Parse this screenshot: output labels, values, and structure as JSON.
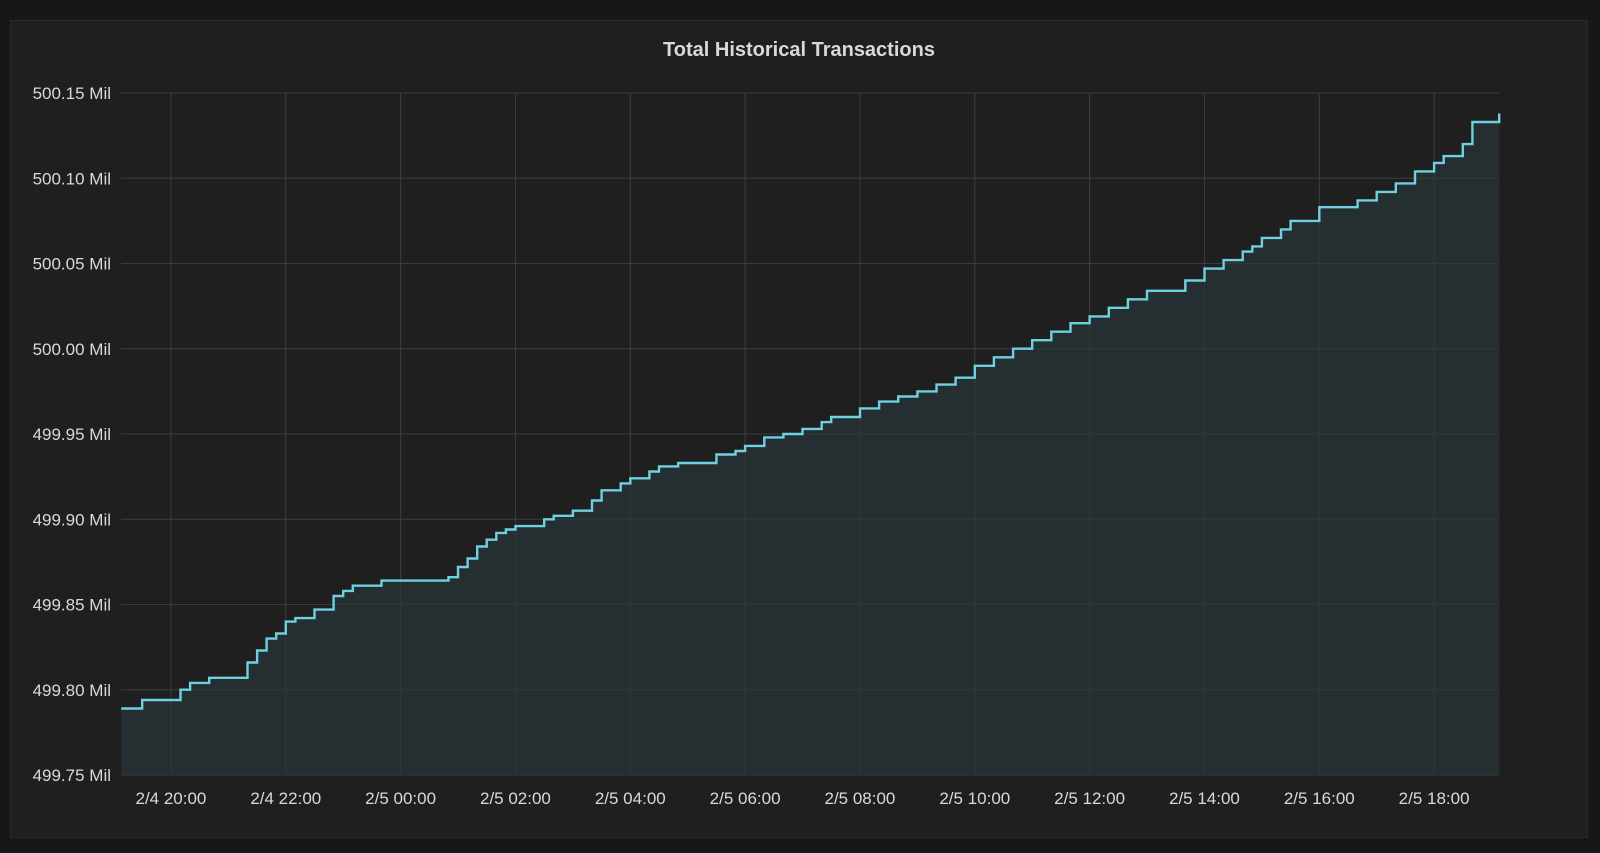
{
  "chart_data": {
    "type": "line",
    "title": "Total Historical Transactions",
    "xlabel": "",
    "ylabel": "",
    "x_ticks": [
      "2/4 20:00",
      "2/4 22:00",
      "2/5 00:00",
      "2/5 02:00",
      "2/5 04:00",
      "2/5 06:00",
      "2/5 08:00",
      "2/5 10:00",
      "2/5 12:00",
      "2/5 14:00",
      "2/5 16:00",
      "2/5 18:00"
    ],
    "y_ticks": [
      "499.75 Mil",
      "499.80 Mil",
      "499.85 Mil",
      "499.90 Mil",
      "499.95 Mil",
      "500.00 Mil",
      "500.05 Mil",
      "500.10 Mil",
      "500.15 Mil"
    ],
    "ylim": [
      499.75,
      500.15
    ],
    "xlim_hours_from_2_4_20_00": [
      -0.87,
      23.13
    ],
    "grid": true,
    "fill_area": true,
    "colors": {
      "line": "#6ed0e0",
      "fill": "#263033",
      "grid": "#3b3c3e",
      "text": "#d8d9da",
      "panel_bg": "#1f1f20",
      "page_bg": "#161719"
    },
    "series": [
      {
        "color": "#6ed0e0",
        "x": [
          "2/4 19:08",
          "2/4 19:20",
          "2/4 19:30",
          "2/4 20:00",
          "2/4 20:10",
          "2/4 20:20",
          "2/4 20:40",
          "2/4 21:00",
          "2/4 21:20",
          "2/4 21:30",
          "2/4 21:40",
          "2/4 21:50",
          "2/4 22:00",
          "2/4 22:10",
          "2/4 22:30",
          "2/4 22:50",
          "2/4 23:00",
          "2/4 23:10",
          "2/4 23:20",
          "2/4 23:40",
          "2/5 00:00",
          "2/5 00:30",
          "2/5 00:50",
          "2/5 01:00",
          "2/5 01:10",
          "2/5 01:20",
          "2/5 01:30",
          "2/5 01:40",
          "2/5 01:50",
          "2/5 02:00",
          "2/5 02:10",
          "2/5 02:30",
          "2/5 02:40",
          "2/5 03:00",
          "2/5 03:20",
          "2/5 03:30",
          "2/5 03:50",
          "2/5 04:00",
          "2/5 04:20",
          "2/5 04:30",
          "2/5 04:50",
          "2/5 05:00",
          "2/5 05:30",
          "2/5 05:50",
          "2/5 06:00",
          "2/5 06:20",
          "2/5 06:40",
          "2/5 07:00",
          "2/5 07:20",
          "2/5 07:30",
          "2/5 08:00",
          "2/5 08:20",
          "2/5 08:40",
          "2/5 09:00",
          "2/5 09:20",
          "2/5 09:40",
          "2/5 10:00",
          "2/5 10:20",
          "2/5 10:40",
          "2/5 11:00",
          "2/5 11:20",
          "2/5 11:40",
          "2/5 12:00",
          "2/5 12:20",
          "2/5 12:40",
          "2/5 13:00",
          "2/5 13:20",
          "2/5 13:40",
          "2/5 14:00",
          "2/5 14:20",
          "2/5 14:40",
          "2/5 14:50",
          "2/5 15:00",
          "2/5 15:20",
          "2/5 15:30",
          "2/5 16:00",
          "2/5 16:20",
          "2/5 16:40",
          "2/5 17:00",
          "2/5 17:20",
          "2/5 17:40",
          "2/5 18:00",
          "2/5 18:10",
          "2/5 18:30",
          "2/5 18:40",
          "2/5 19:08"
        ],
        "values": [
          499.789,
          499.789,
          499.794,
          499.794,
          499.8,
          499.804,
          499.807,
          499.807,
          499.816,
          499.823,
          499.83,
          499.833,
          499.84,
          499.842,
          499.847,
          499.855,
          499.858,
          499.861,
          499.861,
          499.864,
          499.864,
          499.864,
          499.866,
          499.872,
          499.877,
          499.884,
          499.888,
          499.892,
          499.894,
          499.896,
          499.896,
          499.9,
          499.902,
          499.905,
          499.911,
          499.917,
          499.921,
          499.924,
          499.928,
          499.931,
          499.933,
          499.933,
          499.938,
          499.94,
          499.943,
          499.948,
          499.95,
          499.953,
          499.957,
          499.96,
          499.965,
          499.969,
          499.972,
          499.975,
          499.979,
          499.983,
          499.99,
          499.995,
          500.0,
          500.005,
          500.01,
          500.015,
          500.019,
          500.024,
          500.029,
          500.034,
          500.034,
          500.04,
          500.047,
          500.052,
          500.057,
          500.06,
          500.065,
          500.07,
          500.075,
          500.083,
          500.083,
          500.087,
          500.092,
          500.097,
          500.104,
          500.109,
          500.113,
          500.12,
          500.133,
          500.138
        ]
      }
    ]
  }
}
